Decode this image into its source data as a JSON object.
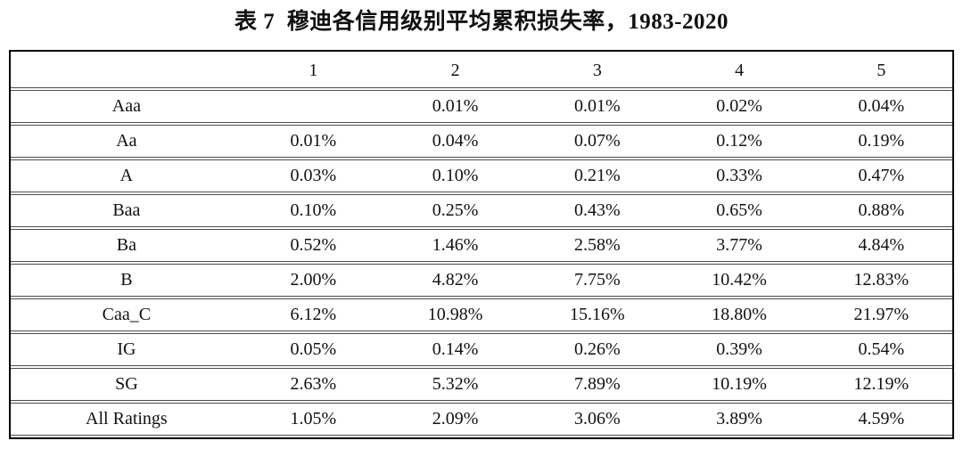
{
  "title": "表 7  穆迪各信用级别平均累积损失率，1983-2020",
  "colors": {
    "background": "#ffffff",
    "outer_border": "#000000",
    "row_line": "#4d4d4d",
    "text": "#111111"
  },
  "table": {
    "headers": [
      "",
      "1",
      "2",
      "3",
      "4",
      "5"
    ],
    "rows": [
      {
        "label": "Aaa",
        "values": [
          "",
          "0.01%",
          "0.01%",
          "0.02%",
          "0.04%"
        ]
      },
      {
        "label": "Aa",
        "values": [
          "0.01%",
          "0.04%",
          "0.07%",
          "0.12%",
          "0.19%"
        ]
      },
      {
        "label": "A",
        "values": [
          "0.03%",
          "0.10%",
          "0.21%",
          "0.33%",
          "0.47%"
        ]
      },
      {
        "label": "Baa",
        "values": [
          "0.10%",
          "0.25%",
          "0.43%",
          "0.65%",
          "0.88%"
        ]
      },
      {
        "label": "Ba",
        "values": [
          "0.52%",
          "1.46%",
          "2.58%",
          "3.77%",
          "4.84%"
        ]
      },
      {
        "label": "B",
        "values": [
          "2.00%",
          "4.82%",
          "7.75%",
          "10.42%",
          "12.83%"
        ]
      },
      {
        "label": "Caa_C",
        "values": [
          "6.12%",
          "10.98%",
          "15.16%",
          "18.80%",
          "21.97%"
        ]
      },
      {
        "label": "IG",
        "values": [
          "0.05%",
          "0.14%",
          "0.26%",
          "0.39%",
          "0.54%"
        ]
      },
      {
        "label": "SG",
        "values": [
          "2.63%",
          "5.32%",
          "7.89%",
          "10.19%",
          "12.19%"
        ]
      },
      {
        "label": "All Ratings",
        "values": [
          "1.05%",
          "2.09%",
          "3.06%",
          "3.89%",
          "4.59%"
        ]
      }
    ]
  },
  "chart_data": {
    "type": "table",
    "title": "表 7  穆迪各信用级别平均累积损失率，1983-2020",
    "categories": [
      "1",
      "2",
      "3",
      "4",
      "5"
    ],
    "series": [
      {
        "name": "Aaa",
        "values": [
          null,
          0.01,
          0.01,
          0.02,
          0.04
        ]
      },
      {
        "name": "Aa",
        "values": [
          0.01,
          0.04,
          0.07,
          0.12,
          0.19
        ]
      },
      {
        "name": "A",
        "values": [
          0.03,
          0.1,
          0.21,
          0.33,
          0.47
        ]
      },
      {
        "name": "Baa",
        "values": [
          0.1,
          0.25,
          0.43,
          0.65,
          0.88
        ]
      },
      {
        "name": "Ba",
        "values": [
          0.52,
          1.46,
          2.58,
          3.77,
          4.84
        ]
      },
      {
        "name": "B",
        "values": [
          2.0,
          4.82,
          7.75,
          10.42,
          12.83
        ]
      },
      {
        "name": "Caa_C",
        "values": [
          6.12,
          10.98,
          15.16,
          18.8,
          21.97
        ]
      },
      {
        "name": "IG",
        "values": [
          0.05,
          0.14,
          0.26,
          0.39,
          0.54
        ]
      },
      {
        "name": "SG",
        "values": [
          2.63,
          5.32,
          7.89,
          10.19,
          12.19
        ]
      },
      {
        "name": "All Ratings",
        "values": [
          1.05,
          2.09,
          3.06,
          3.89,
          4.59
        ]
      }
    ],
    "unit": "%"
  }
}
